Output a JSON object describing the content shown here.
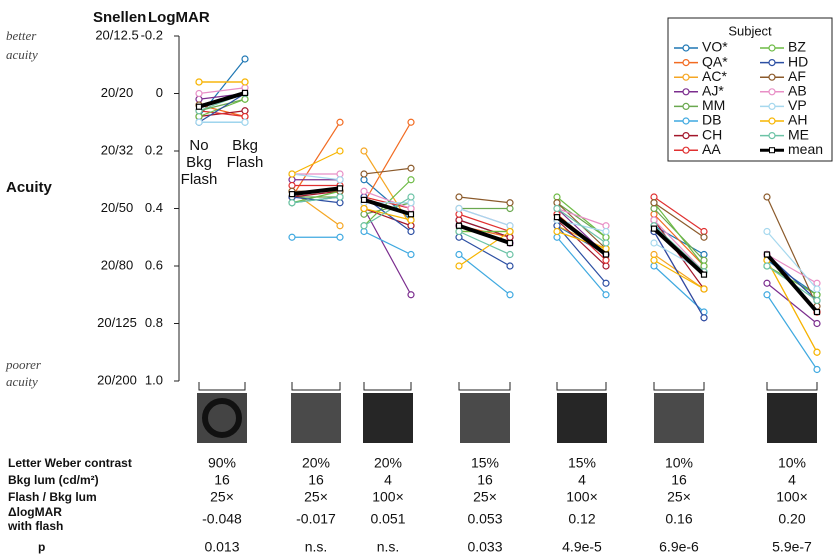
{
  "chart_data": {
    "type": "line",
    "axis_headers": [
      "Snellen",
      "LogMAR"
    ],
    "y_label": "Acuity",
    "annotations": [
      {
        "lines": [
          "better",
          "acuity"
        ]
      },
      {
        "lines": [
          "poorer",
          "acuity"
        ]
      }
    ],
    "categories": [
      "No Bkg Flash",
      "Bkg Flash",
      null,
      null,
      null,
      null,
      null,
      null,
      null,
      null,
      null,
      null,
      null,
      null
    ],
    "ylim": [
      -0.2,
      1.0
    ],
    "y_reversed": true,
    "yticks": [
      -0.2,
      0,
      0.2,
      0.4,
      0.6,
      0.8,
      {
        "value": 1,
        "label": "1.0"
      }
    ],
    "snellen_ticks": [
      {
        "value": -0.2,
        "label": "20/12.5"
      },
      {
        "value": 0,
        "label": "20/20"
      },
      {
        "value": 0.2,
        "label": "20/32"
      },
      {
        "value": 0.4,
        "label": "20/50"
      },
      {
        "value": 0.6,
        "label": "20/80"
      },
      {
        "value": 0.8,
        "label": "20/125"
      },
      {
        "value": 1,
        "label": "20/200"
      }
    ],
    "legend_title": "Subject",
    "legend_position": "top-right",
    "series": [
      {
        "name": "VO*",
        "color": "#1f77b4",
        "values": [
          0.08,
          -0.12,
          0.38,
          0.36,
          0.3,
          0.44,
          0.44,
          0.5,
          0.46,
          0.56,
          0.46,
          0.56,
          0.58,
          0.7
        ]
      },
      {
        "name": "QA*",
        "color": "#f26b21",
        "values": [
          0.04,
          0.08,
          0.36,
          0.1,
          0.38,
          0.1,
          0.46,
          0.5,
          0.42,
          0.56,
          0.42,
          0.6,
          0.56,
          0.76
        ]
      },
      {
        "name": "AC*",
        "color": "#f5a623",
        "values": [
          -0.04,
          -0.04,
          0.34,
          0.46,
          0.2,
          0.46,
          0.48,
          0.48,
          0.46,
          0.54,
          0.56,
          0.68,
          0.58,
          0.9
        ]
      },
      {
        "name": "AJ*",
        "color": "#7b2d8e",
        "values": [
          0.02,
          0.0,
          0.3,
          0.3,
          0.4,
          0.7,
          0.46,
          0.52,
          0.4,
          0.56,
          0.48,
          0.78,
          0.66,
          0.8
        ]
      },
      {
        "name": "MM",
        "color": "#6aa84f",
        "values": [
          0.06,
          0.02,
          0.36,
          0.36,
          0.42,
          0.38,
          0.4,
          0.4,
          0.38,
          0.5,
          0.4,
          0.58,
          0.6,
          0.7
        ]
      },
      {
        "name": "DB",
        "color": "#3fa9e0",
        "values": [
          0.1,
          0.1,
          0.5,
          0.5,
          0.48,
          0.56,
          0.56,
          0.7,
          0.5,
          0.7,
          0.6,
          0.76,
          0.7,
          0.96
        ]
      },
      {
        "name": "CH",
        "color": "#a3162a",
        "values": [
          0.08,
          0.06,
          0.36,
          0.34,
          0.4,
          0.46,
          0.44,
          0.5,
          0.44,
          0.6,
          0.44,
          0.68,
          0.56,
          0.76
        ]
      },
      {
        "name": "AA",
        "color": "#e03030",
        "values": [
          0.06,
          0.08,
          0.32,
          0.32,
          0.36,
          0.4,
          0.42,
          0.48,
          0.42,
          0.58,
          0.36,
          0.48,
          0.56,
          0.76
        ]
      },
      {
        "name": "BZ",
        "color": "#6dbb45",
        "values": [
          0.08,
          0.02,
          0.38,
          0.34,
          0.46,
          0.3,
          0.48,
          0.48,
          0.36,
          0.5,
          0.38,
          0.6,
          0.6,
          0.7
        ]
      },
      {
        "name": "HD",
        "color": "#2c4fa3",
        "values": [
          0.1,
          0.0,
          0.36,
          0.38,
          0.36,
          0.48,
          0.5,
          0.6,
          0.46,
          0.66,
          0.48,
          0.78,
          0.56,
          0.72
        ]
      },
      {
        "name": "AF",
        "color": "#8b5a2b",
        "values": [
          0.04,
          0.0,
          0.34,
          0.34,
          0.28,
          0.26,
          0.36,
          0.38,
          0.38,
          0.54,
          0.38,
          0.5,
          0.36,
          0.74
        ]
      },
      {
        "name": "AB",
        "color": "#e88fc6",
        "values": [
          0.0,
          -0.02,
          0.28,
          0.28,
          0.34,
          0.4,
          0.4,
          0.46,
          0.4,
          0.46,
          0.44,
          0.62,
          0.56,
          0.66
        ]
      },
      {
        "name": "VP",
        "color": "#a6d8ee",
        "values": [
          0.1,
          0.1,
          0.28,
          0.3,
          0.38,
          0.38,
          0.4,
          0.46,
          0.44,
          0.48,
          0.52,
          0.62,
          0.48,
          0.68
        ]
      },
      {
        "name": "AH",
        "color": "#f7b500",
        "values": [
          -0.04,
          -0.04,
          0.28,
          0.2,
          0.4,
          0.44,
          0.6,
          0.48,
          0.48,
          0.54,
          0.58,
          0.68,
          0.58,
          0.9
        ]
      },
      {
        "name": "ME",
        "color": "#6cc3a6",
        "values": [
          0.06,
          0.0,
          0.38,
          0.36,
          0.46,
          0.36,
          0.48,
          0.56,
          0.4,
          0.52,
          0.46,
          0.62,
          0.6,
          0.72
        ]
      },
      {
        "name": "mean",
        "color": "#000000",
        "marker": "square",
        "values": [
          0.046,
          -0.002,
          0.35,
          0.33,
          0.37,
          0.42,
          0.46,
          0.52,
          0.43,
          0.56,
          0.47,
          0.63,
          0.56,
          0.76
        ]
      }
    ],
    "table": {
      "rows": [
        {
          "label": [
            "Letter Weber contrast"
          ],
          "cells": [
            "90%",
            "20%",
            "20%",
            "15%",
            "15%",
            "10%",
            "10%"
          ]
        },
        {
          "label": [
            "Bkg lum (cd/m²)"
          ],
          "cells": [
            "16",
            "16",
            "4",
            "16",
            "4",
            "16",
            "4"
          ]
        },
        {
          "label": [
            "Flash / Bkg lum"
          ],
          "cells": [
            "25×",
            "25×",
            "100×",
            "25×",
            "100×",
            "25×",
            "100×"
          ]
        },
        {
          "label": [
            "ΔlogMAR",
            "with flash"
          ],
          "cells": [
            "-0.048",
            "-0.017",
            "0.051",
            "0.053",
            "0.12",
            "0.16",
            "0.20"
          ]
        },
        {
          "label": [
            "p"
          ],
          "cells": [
            "0.013",
            "n.s.",
            "n.s.",
            "0.033",
            "4.9e-5",
            "6.9e-6",
            "5.9e-7"
          ]
        }
      ]
    }
  }
}
